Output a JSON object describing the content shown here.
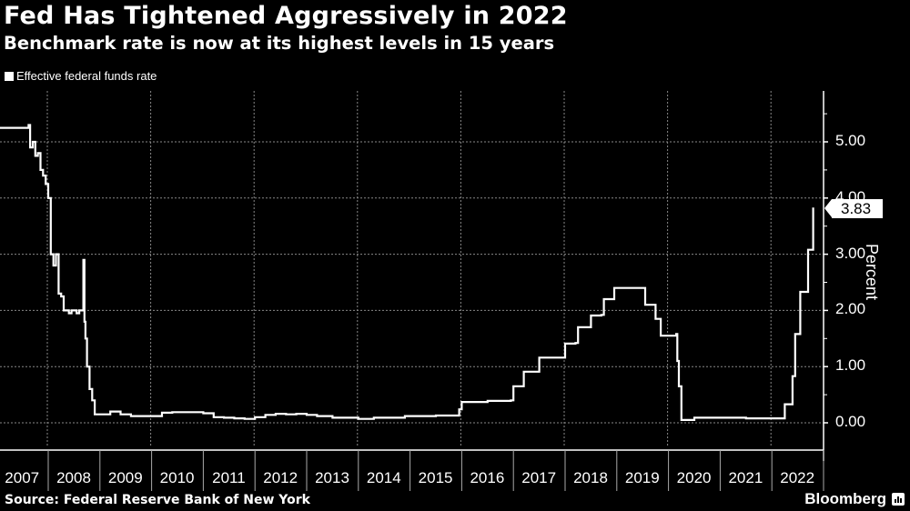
{
  "header": {
    "title": "Fed Has Tightened Aggressively in 2022",
    "subtitle": "Benchmark rate is now at its highest levels in 15 years"
  },
  "legend": {
    "label": "Effective federal funds rate"
  },
  "footer": {
    "source": "Source: Federal Reserve Bank of New York",
    "brand": "Bloomberg"
  },
  "colors": {
    "background": "#000000",
    "line": "#ffffff",
    "grid": "#888888"
  },
  "chart_data": {
    "type": "line",
    "title": "Fed Has Tightened Aggressively in 2022",
    "subtitle": "Benchmark rate is now at its highest levels in 15 years",
    "xlabel": "",
    "ylabel": "Percent",
    "ylim": [
      -0.4,
      5.9
    ],
    "yticks": [
      "0.00",
      "1.00",
      "2.00",
      "3.00",
      "4.00",
      "5.00"
    ],
    "xticks": [
      "2007",
      "2008",
      "2009",
      "2010",
      "2011",
      "2012",
      "2013",
      "2014",
      "2015",
      "2016",
      "2017",
      "2018",
      "2019",
      "2020",
      "2021",
      "2022"
    ],
    "grid": true,
    "legend_position": "top-left",
    "last_value_label": "3.83",
    "series": [
      {
        "name": "Effective federal funds rate",
        "x": [
          2007.05,
          2007.3,
          2007.6,
          2007.62,
          2007.65,
          2007.7,
          2007.75,
          2007.8,
          2007.85,
          2007.9,
          2007.95,
          2008.0,
          2008.05,
          2008.1,
          2008.15,
          2008.2,
          2008.25,
          2008.3,
          2008.35,
          2008.4,
          2008.45,
          2008.5,
          2008.55,
          2008.6,
          2008.65,
          2008.68,
          2008.7,
          2008.72,
          2008.75,
          2008.8,
          2008.85,
          2008.9,
          2008.95,
          2009.0,
          2009.2,
          2009.4,
          2009.6,
          2009.8,
          2010.0,
          2010.2,
          2010.4,
          2010.6,
          2010.8,
          2011.0,
          2011.2,
          2011.4,
          2011.6,
          2011.8,
          2012.0,
          2012.2,
          2012.4,
          2012.6,
          2012.8,
          2013.0,
          2013.2,
          2013.5,
          2013.8,
          2014.0,
          2014.3,
          2014.6,
          2014.9,
          2015.2,
          2015.5,
          2015.8,
          2015.95,
          2016.0,
          2016.5,
          2016.95,
          2017.0,
          2017.2,
          2017.45,
          2017.5,
          2017.95,
          2018.0,
          2018.2,
          2018.25,
          2018.45,
          2018.5,
          2018.7,
          2018.75,
          2018.95,
          2019.0,
          2019.3,
          2019.5,
          2019.55,
          2019.7,
          2019.75,
          2019.85,
          2020.0,
          2020.15,
          2020.17,
          2020.2,
          2020.25,
          2020.5,
          2021.0,
          2021.5,
          2022.0,
          2022.2,
          2022.25,
          2022.35,
          2022.4,
          2022.45,
          2022.55,
          2022.6,
          2022.7,
          2022.75,
          2022.8
        ],
        "values": [
          5.25,
          5.25,
          5.25,
          5.3,
          4.9,
          5.0,
          4.75,
          4.8,
          4.5,
          4.4,
          4.25,
          4.0,
          3.0,
          2.8,
          3.0,
          2.3,
          2.25,
          2.0,
          2.0,
          1.95,
          2.0,
          2.0,
          1.95,
          2.0,
          2.0,
          2.9,
          1.8,
          1.5,
          1.0,
          0.6,
          0.4,
          0.15,
          0.15,
          0.15,
          0.2,
          0.15,
          0.12,
          0.12,
          0.12,
          0.18,
          0.19,
          0.19,
          0.19,
          0.17,
          0.1,
          0.09,
          0.08,
          0.07,
          0.1,
          0.14,
          0.16,
          0.15,
          0.16,
          0.14,
          0.12,
          0.09,
          0.09,
          0.07,
          0.09,
          0.09,
          0.12,
          0.12,
          0.13,
          0.13,
          0.24,
          0.37,
          0.39,
          0.4,
          0.65,
          0.91,
          0.91,
          1.16,
          1.16,
          1.41,
          1.42,
          1.7,
          1.7,
          1.91,
          1.92,
          2.2,
          2.4,
          2.4,
          2.4,
          2.4,
          2.1,
          2.1,
          1.85,
          1.55,
          1.55,
          1.58,
          1.1,
          0.65,
          0.05,
          0.09,
          0.09,
          0.08,
          0.08,
          0.08,
          0.33,
          0.33,
          0.83,
          1.58,
          2.33,
          2.33,
          3.08,
          3.08,
          3.83
        ]
      }
    ]
  },
  "axes": {
    "y_ticks": [
      {
        "label": "5.00",
        "value": 5
      },
      {
        "label": "4.00",
        "value": 4
      },
      {
        "label": "3.00",
        "value": 3
      },
      {
        "label": "2.00",
        "value": 2
      },
      {
        "label": "1.00",
        "value": 1
      },
      {
        "label": "0.00",
        "value": 0
      }
    ],
    "y_label": "Percent",
    "x_ticks": [
      "2007",
      "2008",
      "2009",
      "2010",
      "2011",
      "2012",
      "2013",
      "2014",
      "2015",
      "2016",
      "2017",
      "2018",
      "2019",
      "2020",
      "2021",
      "2022"
    ],
    "last_value": "3.83"
  }
}
